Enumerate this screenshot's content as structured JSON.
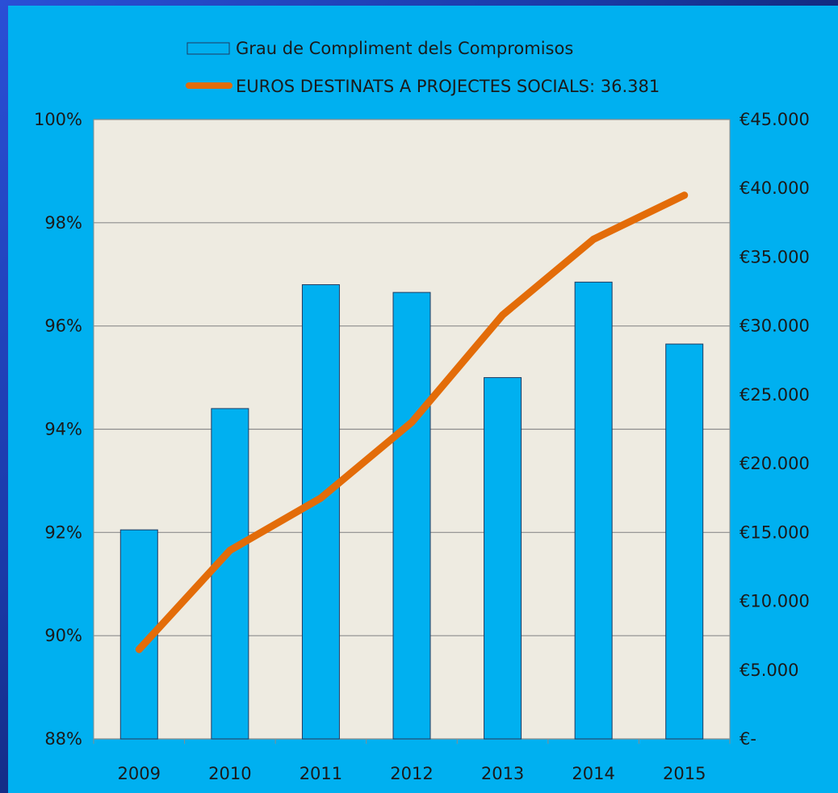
{
  "chart_data": {
    "type": "bar",
    "categories": [
      "2009",
      "2010",
      "2011",
      "2012",
      "2013",
      "2014",
      "2015"
    ],
    "series": [
      {
        "name": "Grau de Compliment dels Compromisos",
        "type": "bar",
        "axis": "left",
        "values": [
          92.05,
          94.4,
          96.8,
          96.65,
          95.0,
          96.85,
          95.65
        ]
      },
      {
        "name": "EUROS DESTINATS A PROJECTES SOCIALS:  36.381",
        "type": "line",
        "axis": "right",
        "values": [
          6500,
          13700,
          17500,
          23000,
          30800,
          36300,
          39500
        ]
      }
    ],
    "y_left": {
      "range": [
        88,
        100
      ],
      "ticks": [
        88,
        90,
        92,
        94,
        96,
        98,
        100
      ],
      "tick_labels": [
        "88%",
        "90%",
        "92%",
        "94%",
        "96%",
        "98%",
        "100%"
      ]
    },
    "y_right": {
      "range": [
        0,
        45000
      ],
      "ticks": [
        0,
        5000,
        10000,
        15000,
        20000,
        25000,
        30000,
        35000,
        40000,
        45000
      ],
      "tick_labels": [
        "€-",
        "€5.000",
        "€10.000",
        "€15.000",
        "€20.000",
        "€25.000",
        "€30.000",
        "€35.000",
        "€40.000",
        "€45.000"
      ]
    },
    "grid": true,
    "legend_position": "top",
    "colors": {
      "bar": "#00b0f0",
      "bar_border": "#1f3a60",
      "line": "#e36c09",
      "plot_background": "#eeebe1",
      "panel_background": "#00b0f0",
      "gridline": "#8c8c8c"
    }
  }
}
